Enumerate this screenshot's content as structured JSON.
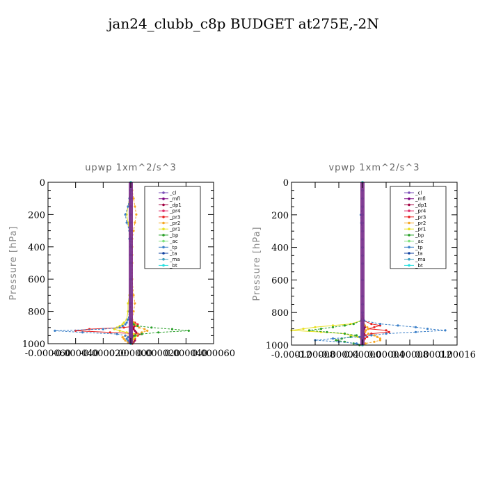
{
  "figure_title": "jan24_clubb_c8p  BUDGET at275E,-2N",
  "chart_data": [
    {
      "type": "line",
      "title": "upwp   1xm^2/s^3",
      "ylabel": "Pressure [hPa]",
      "xlabel": "",
      "xlim": [
        -6e-05,
        6e-05
      ],
      "ylim": [
        1000,
        0
      ],
      "y_ticks": [
        "0",
        "200",
        "400",
        "600",
        "800",
        "1000"
      ],
      "x_ticks": [
        "-0.000060",
        "-0.000040",
        "-0.000020",
        "0.000000",
        "0.000020",
        "0.000040",
        "0.000060"
      ],
      "legend_position": "top-right",
      "pressure_levels": [
        50,
        100,
        150,
        200,
        250,
        300,
        350,
        400,
        450,
        500,
        600,
        700,
        750,
        800,
        850,
        870,
        880,
        890,
        900,
        910,
        920,
        930,
        940,
        950,
        960,
        970,
        980,
        990,
        1000
      ],
      "series": [
        {
          "name": "_cl",
          "color": "#7b4fb8",
          "values": [
            0,
            0,
            0,
            0,
            0,
            0,
            0,
            0,
            0,
            0,
            0,
            0,
            0,
            0,
            0,
            0,
            0,
            0,
            0,
            0,
            0,
            0,
            0,
            0,
            0,
            0,
            0,
            0,
            0
          ]
        },
        {
          "name": "_mfl",
          "color": "#7a0080",
          "values": [
            0,
            0,
            0,
            0,
            0,
            0,
            0,
            0,
            0,
            0,
            0,
            0,
            0,
            0,
            0,
            0,
            0,
            0,
            0,
            0,
            0,
            0,
            0,
            0,
            0,
            0,
            0,
            0,
            0
          ]
        },
        {
          "name": "_dp1",
          "color": "#a00040",
          "values": [
            0,
            0,
            0,
            0,
            0,
            0,
            0,
            0,
            0,
            0,
            0,
            0,
            0,
            0,
            0,
            1e-06,
            2e-06,
            3e-06,
            2e-06,
            2e-06,
            3e-06,
            4e-06,
            3e-06,
            2e-06,
            1e-06,
            2e-06,
            3e-06,
            2e-06,
            1e-06
          ]
        },
        {
          "name": "_pr4",
          "color": "#e0306a",
          "values": [
            0,
            0,
            0,
            0,
            0,
            0,
            0,
            0,
            0,
            0,
            0,
            0,
            0,
            0,
            0,
            0,
            0,
            0,
            0,
            0,
            0,
            0,
            0,
            0,
            0,
            0,
            0,
            0,
            0
          ]
        },
        {
          "name": "_pr3",
          "color": "#e82020",
          "values": [
            0,
            0,
            0,
            0,
            0,
            0,
            0,
            0,
            0,
            0,
            0,
            0,
            0,
            0,
            0,
            3e-06,
            5e-06,
            4e-06,
            -5e-06,
            -3e-05,
            -4e-05,
            -1.5e-05,
            8e-06,
            5e-06,
            -2e-06,
            3e-06,
            1e-06,
            -2e-06,
            1e-06
          ]
        },
        {
          "name": "_pr2",
          "color": "#f6a623",
          "values": [
            1e-06,
            2e-06,
            3e-06,
            4e-06,
            3e-06,
            2e-06,
            1e-06,
            1e-06,
            1e-06,
            1e-06,
            1e-06,
            2e-06,
            3e-06,
            2e-06,
            1e-06,
            2e-06,
            3e-06,
            4e-06,
            6e-06,
            1e-05,
            1.2e-05,
            8e-06,
            2e-06,
            -4e-06,
            -6e-06,
            -5e-06,
            -4e-06,
            -2e-06,
            0
          ]
        },
        {
          "name": "_pr1",
          "color": "#e8e020",
          "values": [
            0,
            -1e-06,
            -2e-06,
            -3e-06,
            -2e-06,
            -1e-06,
            0,
            0,
            0,
            0,
            0,
            -1e-06,
            -2e-06,
            -2e-06,
            -3e-06,
            -5e-06,
            -6e-06,
            -8e-06,
            -1e-05,
            -1.2e-05,
            -8e-06,
            -3e-06,
            2e-06,
            4e-06,
            3e-06,
            2e-06,
            1e-06,
            1e-06,
            0
          ]
        },
        {
          "name": "_bp",
          "color": "#2aa02a",
          "values": [
            0,
            0,
            0,
            0,
            0,
            0,
            0,
            0,
            0,
            0,
            0,
            0,
            0,
            0,
            0,
            1e-06,
            2e-06,
            5e-06,
            1.5e-05,
            3e-05,
            4.2e-05,
            2e-05,
            8e-06,
            3e-06,
            1e-06,
            0,
            0,
            0,
            0
          ]
        },
        {
          "name": "_ac",
          "color": "#7ce07c",
          "values": [
            0,
            0,
            0,
            0,
            0,
            0,
            0,
            0,
            0,
            0,
            0,
            0,
            0,
            0,
            0,
            0,
            0,
            0,
            0,
            0,
            0,
            0,
            0,
            0,
            0,
            0,
            0,
            0,
            0
          ]
        },
        {
          "name": "_tp",
          "color": "#3a7fc8",
          "values": [
            0,
            -1e-06,
            -2e-06,
            -4e-06,
            -3e-06,
            -1e-06,
            -1e-06,
            0,
            0,
            0,
            0,
            0,
            0,
            -1e-06,
            -2e-06,
            -3e-06,
            -4e-06,
            -6e-06,
            -8e-06,
            -2e-05,
            -5.5e-05,
            -3.5e-05,
            -1e-05,
            -4e-06,
            -2e-06,
            -3e-06,
            -2e-06,
            -1e-06,
            0
          ]
        },
        {
          "name": "_ta",
          "color": "#1040a0",
          "values": [
            0,
            0,
            0,
            0,
            0,
            0,
            0,
            0,
            0,
            0,
            0,
            0,
            0,
            0,
            0,
            0,
            0,
            0,
            0,
            0,
            0,
            0,
            0,
            0,
            0,
            0,
            0,
            0,
            0
          ]
        },
        {
          "name": "_ma",
          "color": "#40a0c0",
          "values": [
            0,
            0,
            0,
            0,
            0,
            0,
            0,
            0,
            0,
            0,
            0,
            0,
            0,
            0,
            0,
            0,
            0,
            0,
            0,
            0,
            0,
            0,
            0,
            0,
            0,
            0,
            0,
            0,
            0
          ]
        },
        {
          "name": "_bt",
          "color": "#20e0e0",
          "values": [
            0,
            0,
            0,
            0,
            0,
            0,
            0,
            0,
            0,
            0,
            0,
            0,
            0,
            0,
            0,
            0,
            0,
            0,
            0,
            0,
            0,
            0,
            0,
            0,
            0,
            0,
            0,
            0,
            0
          ]
        }
      ]
    },
    {
      "type": "line",
      "title": "vpwp   1xm^2/s^3",
      "ylabel": "Pressure [hPa]",
      "xlabel": "",
      "xlim": [
        -0.00012,
        0.00016
      ],
      "ylim": [
        1000,
        0
      ],
      "y_ticks": [
        "0",
        "200",
        "400",
        "600",
        "800",
        "1000"
      ],
      "x_ticks": [
        "-0.00012",
        "-0.00008",
        "-0.00004",
        "0.00000",
        "0.00004",
        "0.00008",
        "0.00012",
        "0.00016"
      ],
      "legend_position": "top-right",
      "pressure_levels": [
        50,
        100,
        150,
        200,
        250,
        300,
        350,
        400,
        450,
        500,
        600,
        700,
        750,
        800,
        850,
        870,
        880,
        890,
        900,
        910,
        920,
        930,
        940,
        950,
        960,
        970,
        980,
        990,
        1000
      ],
      "series": [
        {
          "name": "_cl",
          "color": "#7b4fb8",
          "values": [
            0,
            0,
            0,
            0,
            0,
            0,
            0,
            0,
            0,
            0,
            0,
            0,
            0,
            0,
            0,
            0,
            0,
            0,
            0,
            0,
            0,
            0,
            0,
            0,
            0,
            0,
            0,
            0,
            0
          ]
        },
        {
          "name": "_mfl",
          "color": "#7a0080",
          "values": [
            0,
            0,
            0,
            0,
            0,
            0,
            0,
            0,
            0,
            0,
            0,
            0,
            0,
            0,
            0,
            0,
            0,
            0,
            0,
            0,
            0,
            0,
            0,
            0,
            0,
            0,
            0,
            0,
            0
          ]
        },
        {
          "name": "_dp1",
          "color": "#a00040",
          "values": [
            0,
            0,
            0,
            0,
            0,
            0,
            0,
            0,
            0,
            0,
            0,
            0,
            0,
            0,
            0,
            2e-06,
            3e-06,
            4e-06,
            3e-06,
            2e-06,
            2e-06,
            3e-06,
            2e-06,
            1e-06,
            1e-06,
            1e-06,
            1e-06,
            0,
            0
          ]
        },
        {
          "name": "_pr4",
          "color": "#e0306a",
          "values": [
            0,
            0,
            0,
            0,
            0,
            0,
            0,
            0,
            0,
            0,
            0,
            0,
            0,
            0,
            0,
            0,
            0,
            0,
            0,
            0,
            0,
            0,
            0,
            0,
            0,
            0,
            0,
            0,
            0
          ]
        },
        {
          "name": "_pr3",
          "color": "#e82020",
          "values": [
            0,
            0,
            0,
            0,
            0,
            0,
            0,
            0,
            0,
            0,
            0,
            0,
            0,
            0,
            2e-06,
            1.5e-05,
            3e-05,
            2e-05,
            1e-05,
            4e-05,
            4.5e-05,
            1.5e-05,
            5e-06,
            8e-06,
            4e-06,
            2e-06,
            1e-06,
            0,
            0
          ]
        },
        {
          "name": "_pr2",
          "color": "#f6a623",
          "values": [
            0,
            0,
            0,
            0,
            0,
            0,
            0,
            0,
            0,
            0,
            0,
            0,
            0,
            0,
            0,
            2e-06,
            4e-06,
            8e-06,
            1e-05,
            6e-06,
            4e-06,
            1e-05,
            2e-05,
            2.5e-05,
            3e-05,
            3e-05,
            2e-05,
            5e-06,
            0
          ]
        },
        {
          "name": "_pr1",
          "color": "#e8e020",
          "values": [
            0,
            0,
            0,
            0,
            0,
            0,
            0,
            0,
            0,
            0,
            0,
            0,
            0,
            0,
            -2e-06,
            -2e-05,
            -5e-05,
            -8e-05,
            -0.0001,
            -0.00012,
            -7e-05,
            -3e-05,
            -2e-05,
            -8e-06,
            -3e-06,
            -1e-06,
            0,
            0,
            0
          ]
        },
        {
          "name": "_bp",
          "color": "#2aa02a",
          "values": [
            0,
            0,
            0,
            0,
            0,
            0,
            0,
            0,
            0,
            0,
            0,
            0,
            0,
            0,
            -2e-06,
            -1.5e-05,
            -3e-05,
            -5e-05,
            -7e-05,
            -9e-05,
            -6e-05,
            -3e-05,
            -1e-05,
            -2e-05,
            -3.5e-05,
            -4.5e-05,
            -3e-05,
            -1.5e-05,
            -5e-06
          ]
        },
        {
          "name": "_ac",
          "color": "#7ce07c",
          "values": [
            0,
            0,
            0,
            0,
            0,
            0,
            0,
            0,
            0,
            0,
            0,
            0,
            0,
            0,
            0,
            0,
            0,
            0,
            0,
            0,
            0,
            0,
            0,
            0,
            0,
            0,
            0,
            0,
            0
          ]
        },
        {
          "name": "_tp",
          "color": "#3a7fc8",
          "values": [
            0,
            0,
            0,
            -3e-06,
            -2e-06,
            0,
            0,
            0,
            0,
            0,
            0,
            0,
            0,
            0,
            3e-06,
            3e-05,
            6e-05,
            9e-05,
            0.00011,
            0.00014,
            9e-05,
            4e-05,
            1.5e-05,
            -5e-06,
            -5e-05,
            -8e-05,
            -4e-05,
            -1e-05,
            0
          ]
        },
        {
          "name": "_ta",
          "color": "#1040a0",
          "values": [
            0,
            0,
            0,
            0,
            0,
            0,
            0,
            0,
            0,
            0,
            0,
            0,
            0,
            0,
            0,
            0,
            0,
            0,
            0,
            0,
            0,
            0,
            0,
            0,
            0,
            0,
            0,
            0,
            0
          ]
        },
        {
          "name": "_ma",
          "color": "#40a0c0",
          "values": [
            0,
            0,
            0,
            0,
            0,
            0,
            0,
            0,
            0,
            0,
            0,
            0,
            0,
            0,
            0,
            0,
            0,
            0,
            0,
            0,
            0,
            0,
            0,
            0,
            0,
            0,
            0,
            0,
            0
          ]
        },
        {
          "name": "_bt",
          "color": "#20e0e0",
          "values": [
            0,
            0,
            0,
            0,
            0,
            0,
            0,
            0,
            0,
            0,
            0,
            0,
            0,
            0,
            0,
            0,
            0,
            0,
            0,
            0,
            0,
            0,
            0,
            0,
            0,
            0,
            0,
            0,
            0
          ]
        }
      ]
    }
  ]
}
